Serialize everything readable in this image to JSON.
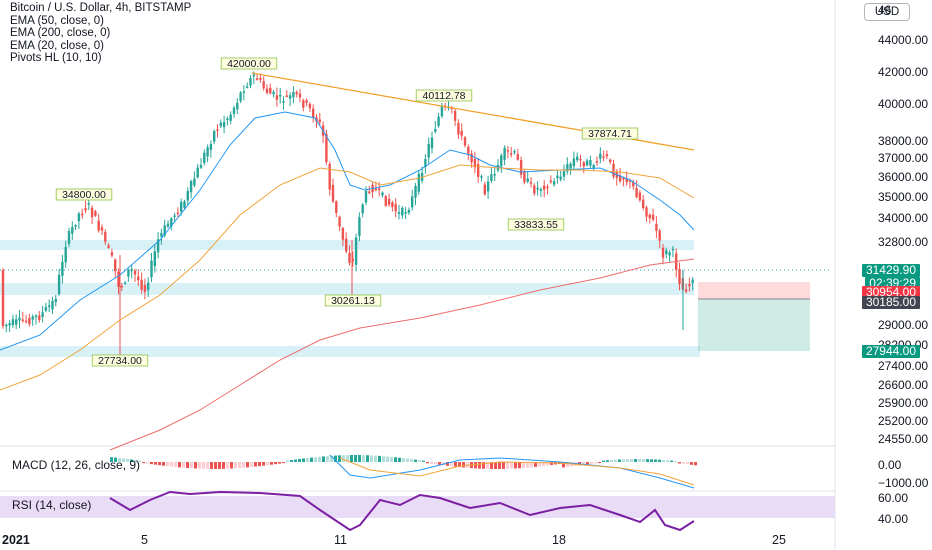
{
  "legend": {
    "title": "Bitcoin / U.S. Dollar, 4h, BITSTAMP",
    "ema50": "EMA (50, close, 0)",
    "ema200": "EMA (200, close, 0)",
    "ema20": "EMA (20, close, 0)",
    "pivots": "Pivots HL (10, 10)"
  },
  "currency_button": "USD",
  "price_axis": [
    "44000.00",
    "42000.00",
    "40000.00",
    "38000.00",
    "37000.00",
    "36000.00",
    "35000.00",
    "34000.00",
    "32800.00",
    "29000.00",
    "28200.00",
    "27400.00",
    "26600.00",
    "25900.00",
    "25200.00",
    "24550.00"
  ],
  "price_axis_top": "46",
  "pivot_labels": [
    "42000.00",
    "40112.78",
    "37874.71",
    "34800.00",
    "33833.55",
    "30261.13",
    "27734.00"
  ],
  "tags": {
    "last_price": "31429.90",
    "countdown": "02:39:29",
    "stop": "30954.00",
    "entry": "30185.00",
    "target": "27944.00"
  },
  "macd": {
    "label": "MACD (12, 26, close, 9)",
    "axis": [
      "0.00",
      "−1000.00"
    ]
  },
  "rsi": {
    "label": "RSI (14, close)",
    "axis": [
      "60.00",
      "40.00"
    ]
  },
  "time_axis": [
    "2021",
    "5",
    "11",
    "18",
    "25"
  ],
  "colors": {
    "up": "#26a69a",
    "down": "#ef5350",
    "ema50": "#f2a33a",
    "ema20": "#2196f3",
    "ema200": "#ef6c6c",
    "trend": "#f0a02a",
    "zone": "#cdeef5",
    "rsi": "#7b1fa2",
    "rsi_band": "#e9dcf7",
    "tag_red": "#f23645",
    "tag_green": "#089981",
    "tag_dark": "#434651"
  }
}
